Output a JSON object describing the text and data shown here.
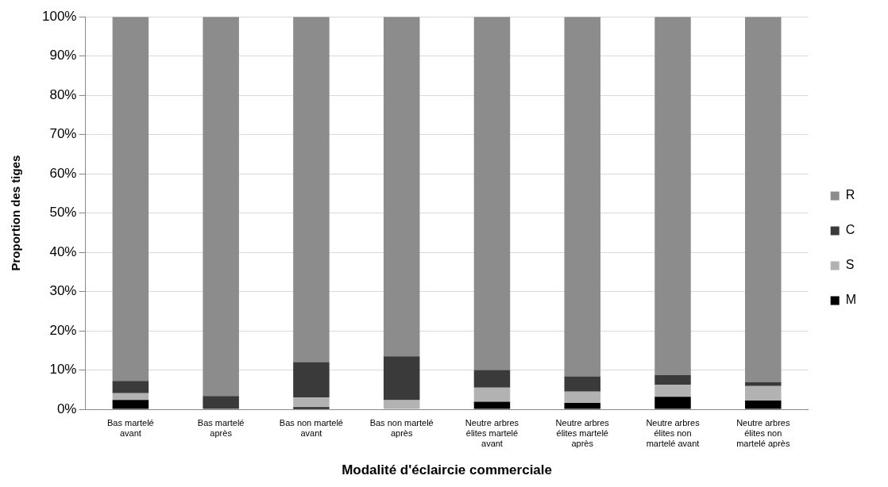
{
  "chart_data": {
    "type": "bar",
    "stacked": true,
    "xlabel": "Modalité d'éclaircie commerciale",
    "ylabel": "Proportion des tiges",
    "categories": [
      "Bas martelé avant",
      "Bas martelé après",
      "Bas non martelé avant",
      "Bas non martelé après",
      "Neutre arbres élites martelé avant",
      "Neutre arbres élites martelé après",
      "Neutre arbres élites non martelé avant",
      "Neutre arbres élites non martelé après"
    ],
    "series": [
      {
        "name": "M",
        "color": "#000000",
        "values": [
          2.4,
          0,
          0.5,
          0,
          1.9,
          1.6,
          3.2,
          2.2
        ]
      },
      {
        "name": "S",
        "color": "#b2b2b2",
        "values": [
          1.7,
          0,
          2.5,
          2.3,
          3.6,
          2.9,
          3.0,
          3.7
        ]
      },
      {
        "name": "C",
        "color": "#3a3a3a",
        "values": [
          3.1,
          3.4,
          9.0,
          11.2,
          4.5,
          3.9,
          2.5,
          1.0
        ]
      },
      {
        "name": "R",
        "color": "#8c8c8c",
        "values": [
          92.8,
          96.6,
          88.0,
          86.5,
          90.0,
          91.6,
          91.3,
          93.1
        ]
      }
    ],
    "ylim": [
      0,
      100
    ],
    "yticks": [
      {
        "value": 0,
        "label": "0%"
      },
      {
        "value": 10,
        "label": "10%"
      },
      {
        "value": 20,
        "label": "20%"
      },
      {
        "value": 30,
        "label": "30%"
      },
      {
        "value": 40,
        "label": "40%"
      },
      {
        "value": 50,
        "label": "50%"
      },
      {
        "value": 60,
        "label": "60%"
      },
      {
        "value": 70,
        "label": "70%"
      },
      {
        "value": 80,
        "label": "80%"
      },
      {
        "value": 90,
        "label": "90%"
      },
      {
        "value": 100,
        "label": "100%"
      }
    ],
    "grid": "y",
    "legend": "right"
  }
}
